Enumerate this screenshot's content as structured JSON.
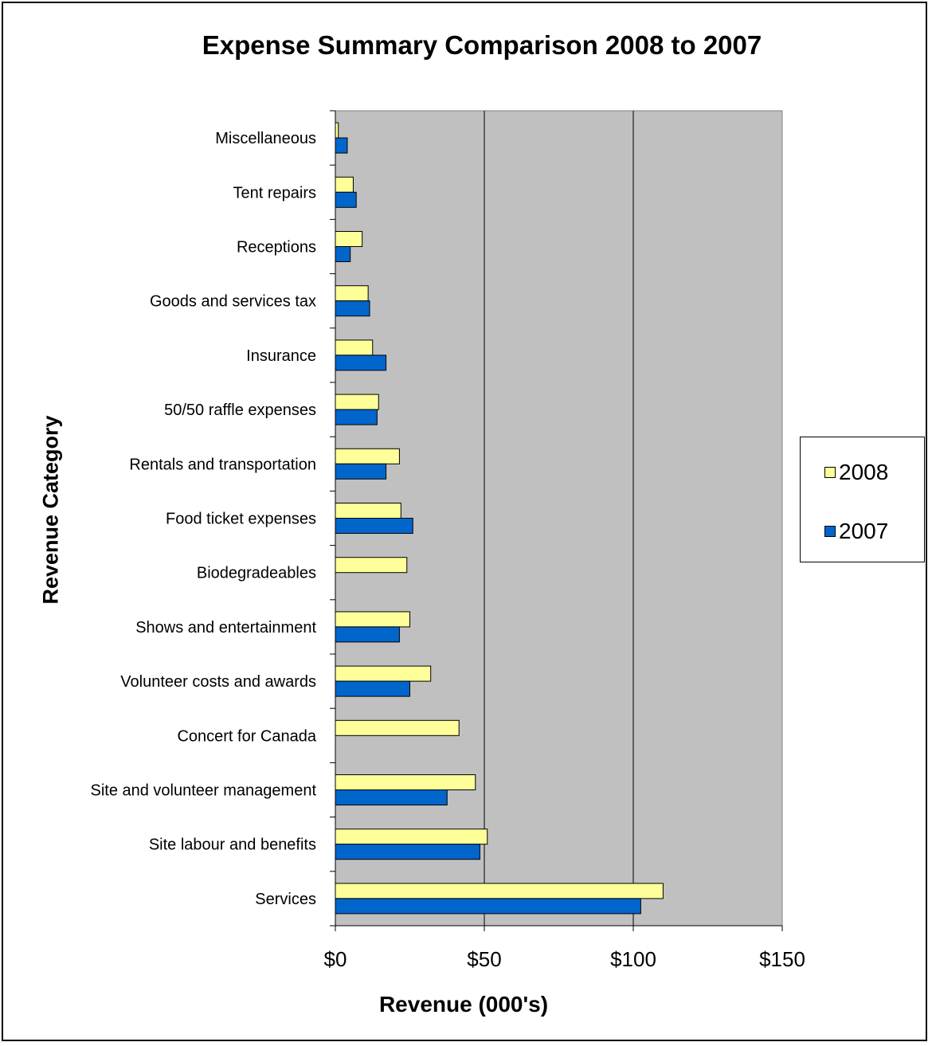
{
  "chart_data": {
    "type": "bar",
    "orientation": "horizontal",
    "title": "Expense Summary Comparison 2008 to 2007",
    "xlabel": "Revenue (000's)",
    "ylabel": "Revenue Category",
    "categories": [
      "Miscellaneous",
      "Tent repairs",
      "Receptions",
      "Goods and services tax",
      "Insurance",
      "50/50 raffle expenses",
      "Rentals and transportation",
      "Food ticket expenses",
      "Biodegradeables",
      "Shows and entertainment",
      "Volunteer costs and awards",
      "Concert for Canada",
      "Site and volunteer management",
      "Site labour and benefits",
      "Services"
    ],
    "series": [
      {
        "name": "2008",
        "color": "#ffff99",
        "values": [
          1,
          6,
          9,
          11,
          12.5,
          14.5,
          21.5,
          22,
          24,
          25,
          32,
          41.5,
          47,
          51,
          110
        ]
      },
      {
        "name": "2007",
        "color": "#0066cc",
        "values": [
          4,
          7,
          5,
          11.5,
          17,
          14,
          17,
          26,
          null,
          21.5,
          25,
          null,
          37.5,
          48.5,
          102.5
        ]
      }
    ],
    "xlim": [
      0,
      150
    ],
    "xticks": [
      "$0",
      "$50",
      "$100",
      "$150"
    ],
    "grid": "vertical major gridlines",
    "plot_background": "#c0c0c0",
    "legend_position": "right"
  }
}
